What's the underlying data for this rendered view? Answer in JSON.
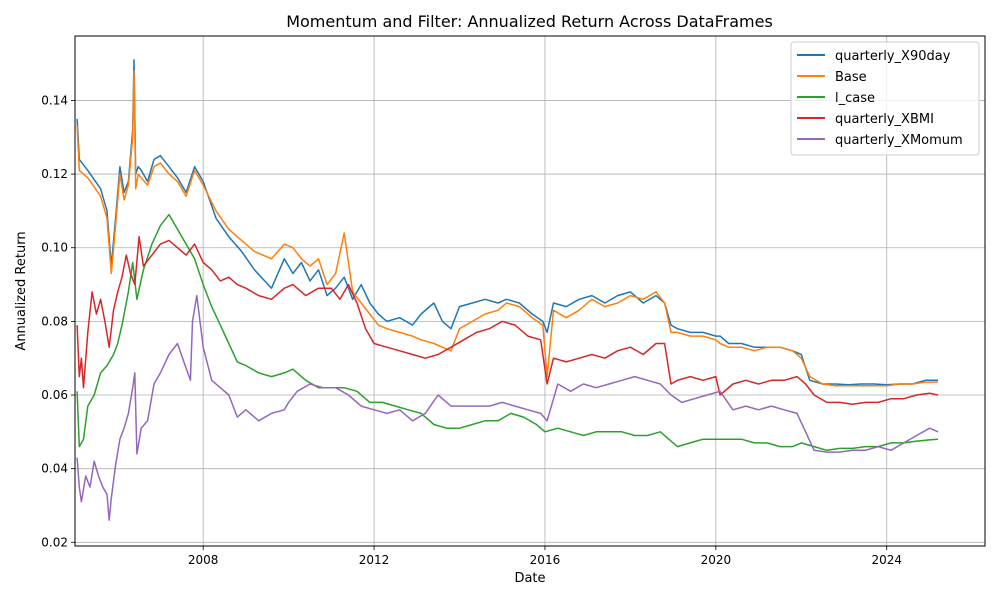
{
  "chart_data": {
    "type": "line",
    "title": "Momentum and Filter: Annualized Return Across DataFrames",
    "xlabel": "Date",
    "ylabel": "Annualized Return",
    "xlim": [
      2005.0,
      2026.3
    ],
    "ylim": [
      0.019,
      0.1575
    ],
    "xticks": [
      2008,
      2012,
      2016,
      2020,
      2024
    ],
    "xtick_labels": [
      "2008",
      "2012",
      "2016",
      "2020",
      "2024"
    ],
    "yticks": [
      0.02,
      0.04,
      0.06,
      0.08,
      0.1,
      0.12,
      0.14
    ],
    "ytick_labels": [
      "0.02",
      "0.04",
      "0.06",
      "0.08",
      "0.10",
      "0.12",
      "0.14"
    ],
    "grid": true,
    "legend_position": "upper-right",
    "series": [
      {
        "name": "quarterly_X90day",
        "color": "#1f77b4",
        "x": [
          2005.05,
          2005.1,
          2005.3,
          2005.6,
          2005.75,
          2005.85,
          2005.95,
          2006.05,
          2006.15,
          2006.25,
          2006.35,
          2006.38,
          2006.42,
          2006.48,
          2006.55,
          2006.7,
          2006.85,
          2007.0,
          2007.2,
          2007.4,
          2007.6,
          2007.8,
          2008.0,
          2008.3,
          2008.6,
          2008.9,
          2009.2,
          2009.6,
          2009.9,
          2010.1,
          2010.3,
          2010.5,
          2010.7,
          2010.9,
          2011.1,
          2011.3,
          2011.5,
          2011.7,
          2011.9,
          2012.1,
          2012.3,
          2012.6,
          2012.9,
          2013.1,
          2013.4,
          2013.6,
          2013.8,
          2014.0,
          2014.3,
          2014.6,
          2014.9,
          2015.1,
          2015.4,
          2015.7,
          2015.95,
          2016.05,
          2016.2,
          2016.5,
          2016.8,
          2017.1,
          2017.4,
          2017.7,
          2018.0,
          2018.3,
          2018.6,
          2018.8,
          2018.95,
          2019.1,
          2019.4,
          2019.7,
          2020.0,
          2020.1,
          2020.3,
          2020.6,
          2020.9,
          2021.2,
          2021.5,
          2021.8,
          2022.0,
          2022.2,
          2022.5,
          2022.8,
          2023.1,
          2023.4,
          2023.7,
          2024.0,
          2024.3,
          2024.6,
          2024.9,
          2025.2
        ],
        "y": [
          0.135,
          0.124,
          0.121,
          0.116,
          0.11,
          0.095,
          0.108,
          0.122,
          0.115,
          0.118,
          0.132,
          0.151,
          0.12,
          0.122,
          0.121,
          0.118,
          0.124,
          0.125,
          0.122,
          0.119,
          0.115,
          0.122,
          0.118,
          0.108,
          0.103,
          0.099,
          0.094,
          0.089,
          0.097,
          0.093,
          0.096,
          0.091,
          0.094,
          0.087,
          0.089,
          0.092,
          0.086,
          0.09,
          0.085,
          0.082,
          0.08,
          0.081,
          0.079,
          0.082,
          0.085,
          0.08,
          0.078,
          0.084,
          0.085,
          0.086,
          0.085,
          0.086,
          0.085,
          0.082,
          0.08,
          0.077,
          0.085,
          0.084,
          0.086,
          0.087,
          0.085,
          0.087,
          0.088,
          0.085,
          0.087,
          0.085,
          0.079,
          0.078,
          0.077,
          0.077,
          0.076,
          0.076,
          0.074,
          0.074,
          0.073,
          0.073,
          0.073,
          0.072,
          0.071,
          0.064,
          0.063,
          0.063,
          0.0628,
          0.063,
          0.063,
          0.0628,
          0.063,
          0.063,
          0.064,
          0.064
        ]
      },
      {
        "name": "Base",
        "color": "#ff7f0e",
        "x": [
          2005.05,
          2005.1,
          2005.3,
          2005.6,
          2005.75,
          2005.85,
          2005.95,
          2006.05,
          2006.15,
          2006.25,
          2006.35,
          2006.38,
          2006.42,
          2006.48,
          2006.55,
          2006.7,
          2006.85,
          2007.0,
          2007.2,
          2007.4,
          2007.6,
          2007.8,
          2008.0,
          2008.3,
          2008.6,
          2008.9,
          2009.2,
          2009.6,
          2009.9,
          2010.1,
          2010.3,
          2010.5,
          2010.7,
          2010.9,
          2011.1,
          2011.3,
          2011.5,
          2011.7,
          2011.9,
          2012.1,
          2012.3,
          2012.6,
          2012.9,
          2013.1,
          2013.4,
          2013.6,
          2013.8,
          2014.0,
          2014.3,
          2014.6,
          2014.9,
          2015.1,
          2015.4,
          2015.7,
          2015.95,
          2016.05,
          2016.2,
          2016.5,
          2016.8,
          2017.1,
          2017.4,
          2017.7,
          2018.0,
          2018.3,
          2018.6,
          2018.8,
          2018.95,
          2019.1,
          2019.4,
          2019.7,
          2020.0,
          2020.1,
          2020.3,
          2020.6,
          2020.9,
          2021.2,
          2021.5,
          2021.8,
          2022.0,
          2022.2,
          2022.5,
          2022.8,
          2023.1,
          2023.4,
          2023.7,
          2024.0,
          2024.3,
          2024.6,
          2024.9,
          2025.2
        ],
        "y": [
          0.133,
          0.121,
          0.119,
          0.114,
          0.108,
          0.093,
          0.106,
          0.12,
          0.113,
          0.117,
          0.13,
          0.148,
          0.116,
          0.12,
          0.119,
          0.117,
          0.122,
          0.123,
          0.12,
          0.118,
          0.114,
          0.121,
          0.117,
          0.11,
          0.105,
          0.102,
          0.099,
          0.097,
          0.101,
          0.1,
          0.097,
          0.095,
          0.097,
          0.09,
          0.093,
          0.104,
          0.088,
          0.085,
          0.082,
          0.079,
          0.078,
          0.077,
          0.076,
          0.075,
          0.074,
          0.073,
          0.072,
          0.078,
          0.08,
          0.082,
          0.083,
          0.085,
          0.084,
          0.081,
          0.079,
          0.065,
          0.083,
          0.081,
          0.083,
          0.086,
          0.084,
          0.085,
          0.087,
          0.086,
          0.088,
          0.085,
          0.077,
          0.077,
          0.076,
          0.076,
          0.075,
          0.074,
          0.073,
          0.073,
          0.072,
          0.073,
          0.073,
          0.072,
          0.07,
          0.065,
          0.063,
          0.0625,
          0.0625,
          0.0625,
          0.0625,
          0.0625,
          0.063,
          0.063,
          0.0635,
          0.0635
        ]
      },
      {
        "name": "l_case",
        "color": "#2ca02c",
        "x": [
          2005.05,
          2005.1,
          2005.2,
          2005.3,
          2005.45,
          2005.6,
          2005.75,
          2005.9,
          2006.0,
          2006.1,
          2006.25,
          2006.35,
          2006.45,
          2006.6,
          2006.8,
          2007.0,
          2007.2,
          2007.4,
          2007.6,
          2007.8,
          2008.0,
          2008.2,
          2008.4,
          2008.6,
          2008.8,
          2009.0,
          2009.3,
          2009.6,
          2009.9,
          2010.1,
          2010.4,
          2010.7,
          2011.0,
          2011.3,
          2011.6,
          2011.9,
          2012.2,
          2012.5,
          2012.8,
          2013.1,
          2013.4,
          2013.7,
          2014.0,
          2014.3,
          2014.6,
          2014.9,
          2015.2,
          2015.5,
          2015.8,
          2016.0,
          2016.3,
          2016.6,
          2016.9,
          2017.2,
          2017.5,
          2017.8,
          2018.1,
          2018.4,
          2018.7,
          2018.9,
          2019.1,
          2019.4,
          2019.7,
          2020.0,
          2020.3,
          2020.6,
          2020.9,
          2021.2,
          2021.5,
          2021.8,
          2022.0,
          2022.3,
          2022.6,
          2022.9,
          2023.2,
          2023.5,
          2023.8,
          2024.1,
          2024.4,
          2024.7,
          2025.0,
          2025.2
        ],
        "y": [
          0.061,
          0.046,
          0.048,
          0.057,
          0.06,
          0.066,
          0.068,
          0.071,
          0.074,
          0.079,
          0.088,
          0.096,
          0.086,
          0.094,
          0.101,
          0.106,
          0.109,
          0.105,
          0.101,
          0.097,
          0.09,
          0.084,
          0.079,
          0.074,
          0.069,
          0.068,
          0.066,
          0.065,
          0.066,
          0.067,
          0.064,
          0.062,
          0.062,
          0.062,
          0.061,
          0.058,
          0.058,
          0.057,
          0.056,
          0.055,
          0.052,
          0.051,
          0.051,
          0.052,
          0.053,
          0.053,
          0.055,
          0.054,
          0.052,
          0.05,
          0.051,
          0.05,
          0.049,
          0.05,
          0.05,
          0.05,
          0.049,
          0.049,
          0.05,
          0.048,
          0.046,
          0.047,
          0.048,
          0.048,
          0.048,
          0.048,
          0.047,
          0.047,
          0.046,
          0.046,
          0.047,
          0.046,
          0.045,
          0.0455,
          0.0455,
          0.046,
          0.046,
          0.047,
          0.047,
          0.0475,
          0.0478,
          0.048
        ]
      },
      {
        "name": "quarterly_XBMI",
        "color": "#d62728",
        "x": [
          2005.05,
          2005.1,
          2005.15,
          2005.2,
          2005.3,
          2005.4,
          2005.5,
          2005.6,
          2005.7,
          2005.8,
          2005.9,
          2006.0,
          2006.1,
          2006.2,
          2006.3,
          2006.4,
          2006.5,
          2006.6,
          2006.8,
          2007.0,
          2007.2,
          2007.4,
          2007.6,
          2007.8,
          2008.0,
          2008.2,
          2008.4,
          2008.6,
          2008.8,
          2009.0,
          2009.3,
          2009.6,
          2009.9,
          2010.1,
          2010.4,
          2010.7,
          2011.0,
          2011.2,
          2011.4,
          2011.6,
          2011.8,
          2012.0,
          2012.3,
          2012.6,
          2012.9,
          2013.2,
          2013.5,
          2013.8,
          2014.1,
          2014.4,
          2014.7,
          2015.0,
          2015.3,
          2015.6,
          2015.9,
          2016.05,
          2016.2,
          2016.5,
          2016.8,
          2017.1,
          2017.4,
          2017.7,
          2018.0,
          2018.3,
          2018.6,
          2018.8,
          2018.95,
          2019.1,
          2019.4,
          2019.7,
          2020.0,
          2020.1,
          2020.4,
          2020.7,
          2021.0,
          2021.3,
          2021.6,
          2021.9,
          2022.1,
          2022.3,
          2022.6,
          2022.9,
          2023.2,
          2023.5,
          2023.8,
          2024.1,
          2024.4,
          2024.7,
          2025.0,
          2025.2
        ],
        "y": [
          0.079,
          0.065,
          0.07,
          0.062,
          0.077,
          0.088,
          0.082,
          0.086,
          0.08,
          0.073,
          0.083,
          0.088,
          0.092,
          0.098,
          0.093,
          0.09,
          0.103,
          0.095,
          0.098,
          0.101,
          0.102,
          0.1,
          0.098,
          0.101,
          0.096,
          0.094,
          0.091,
          0.092,
          0.09,
          0.089,
          0.087,
          0.086,
          0.089,
          0.09,
          0.087,
          0.089,
          0.089,
          0.086,
          0.09,
          0.085,
          0.078,
          0.074,
          0.073,
          0.072,
          0.071,
          0.07,
          0.071,
          0.073,
          0.075,
          0.077,
          0.078,
          0.08,
          0.079,
          0.076,
          0.075,
          0.063,
          0.07,
          0.069,
          0.07,
          0.071,
          0.07,
          0.072,
          0.073,
          0.071,
          0.074,
          0.074,
          0.063,
          0.064,
          0.065,
          0.064,
          0.065,
          0.06,
          0.063,
          0.064,
          0.063,
          0.064,
          0.064,
          0.065,
          0.063,
          0.06,
          0.058,
          0.058,
          0.0575,
          0.058,
          0.058,
          0.059,
          0.059,
          0.06,
          0.0605,
          0.06
        ]
      },
      {
        "name": "quarterly_XMomum",
        "color": "#9467bd",
        "x": [
          2005.05,
          2005.1,
          2005.15,
          2005.25,
          2005.35,
          2005.45,
          2005.55,
          2005.65,
          2005.75,
          2005.8,
          2005.85,
          2005.95,
          2006.05,
          2006.15,
          2006.25,
          2006.35,
          2006.4,
          2006.45,
          2006.55,
          2006.7,
          2006.85,
          2007.0,
          2007.2,
          2007.4,
          2007.55,
          2007.7,
          2007.75,
          2007.85,
          2008.0,
          2008.2,
          2008.4,
          2008.6,
          2008.8,
          2009.0,
          2009.3,
          2009.6,
          2009.9,
          2010.0,
          2010.2,
          2010.5,
          2010.8,
          2011.1,
          2011.4,
          2011.7,
          2012.0,
          2012.3,
          2012.6,
          2012.9,
          2013.2,
          2013.5,
          2013.8,
          2014.1,
          2014.4,
          2014.7,
          2015.0,
          2015.3,
          2015.6,
          2015.9,
          2016.05,
          2016.3,
          2016.6,
          2016.9,
          2017.2,
          2017.5,
          2017.8,
          2018.1,
          2018.4,
          2018.7,
          2018.95,
          2019.2,
          2019.5,
          2019.8,
          2020.1,
          2020.4,
          2020.7,
          2021.0,
          2021.3,
          2021.6,
          2021.9,
          2022.1,
          2022.3,
          2022.6,
          2022.9,
          2023.2,
          2023.5,
          2023.8,
          2024.1,
          2024.4,
          2024.7,
          2025.0,
          2025.2
        ],
        "y": [
          0.043,
          0.035,
          0.031,
          0.038,
          0.035,
          0.042,
          0.038,
          0.035,
          0.033,
          0.026,
          0.032,
          0.041,
          0.048,
          0.051,
          0.055,
          0.062,
          0.066,
          0.044,
          0.051,
          0.053,
          0.063,
          0.066,
          0.071,
          0.074,
          0.069,
          0.064,
          0.08,
          0.087,
          0.073,
          0.064,
          0.062,
          0.06,
          0.054,
          0.056,
          0.053,
          0.055,
          0.056,
          0.058,
          0.061,
          0.063,
          0.062,
          0.062,
          0.06,
          0.057,
          0.056,
          0.055,
          0.056,
          0.053,
          0.055,
          0.06,
          0.057,
          0.057,
          0.057,
          0.057,
          0.058,
          0.057,
          0.056,
          0.055,
          0.053,
          0.063,
          0.061,
          0.063,
          0.062,
          0.063,
          0.064,
          0.065,
          0.064,
          0.063,
          0.06,
          0.058,
          0.059,
          0.06,
          0.061,
          0.056,
          0.057,
          0.056,
          0.057,
          0.056,
          0.055,
          0.05,
          0.045,
          0.0445,
          0.0445,
          0.045,
          0.045,
          0.046,
          0.045,
          0.047,
          0.049,
          0.051,
          0.05
        ]
      }
    ]
  }
}
